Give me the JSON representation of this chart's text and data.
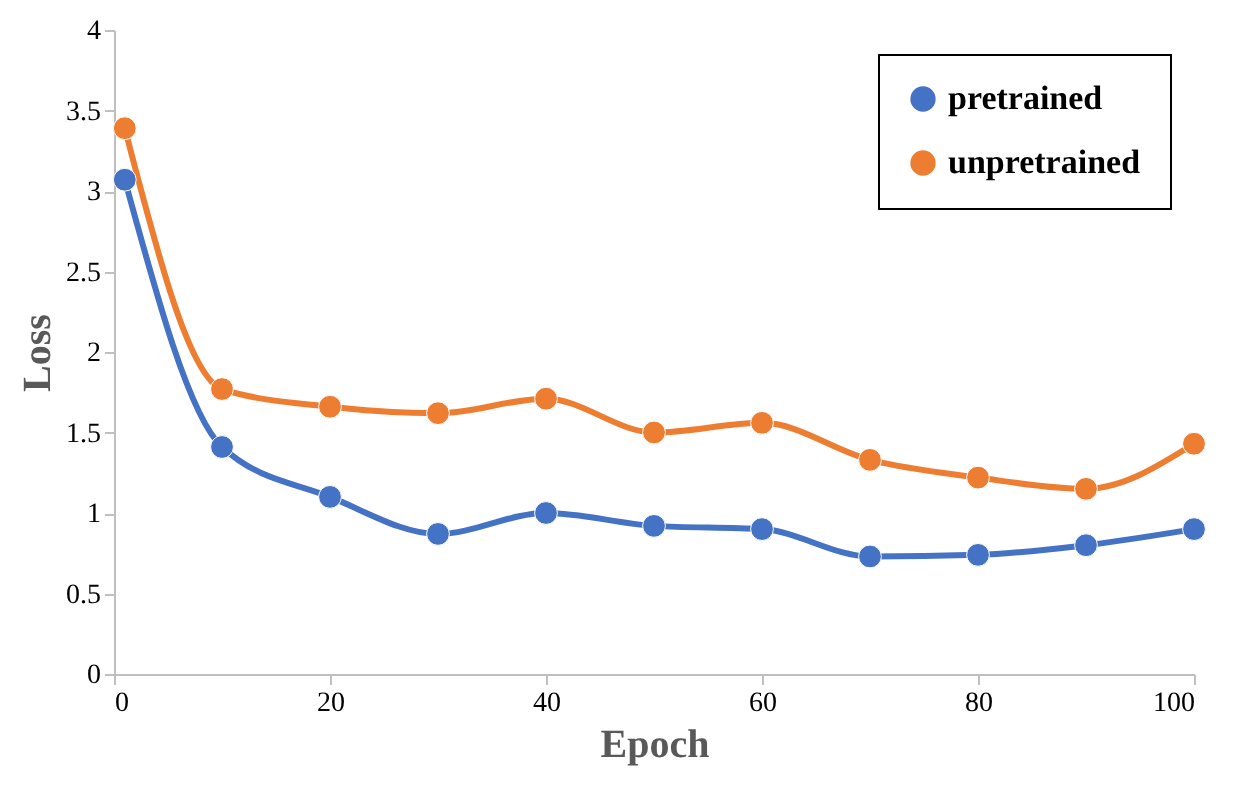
{
  "chart_data": {
    "type": "line",
    "xlabel": "Epoch",
    "ylabel": "Loss",
    "x": [
      1,
      10,
      20,
      30,
      40,
      50,
      60,
      70,
      80,
      90,
      100
    ],
    "series": [
      {
        "name": "pretrained",
        "color": "#4472c4",
        "values": [
          3.07,
          1.41,
          1.1,
          0.87,
          1.0,
          0.92,
          0.9,
          0.73,
          0.74,
          0.8,
          0.9
        ]
      },
      {
        "name": "unpretrained",
        "color": "#ed7d31",
        "values": [
          3.39,
          1.77,
          1.66,
          1.62,
          1.71,
          1.5,
          1.56,
          1.33,
          1.22,
          1.15,
          1.43
        ]
      }
    ],
    "xlim": [
      0,
      100
    ],
    "xticks": [
      0,
      20,
      40,
      60,
      80,
      100
    ],
    "ylim": [
      0,
      4
    ],
    "yticks": [
      0,
      0.5,
      1,
      1.5,
      2,
      2.5,
      3,
      3.5,
      4
    ],
    "legend": "top right",
    "marker": "circle",
    "line_style": "solid",
    "grid": false
  }
}
